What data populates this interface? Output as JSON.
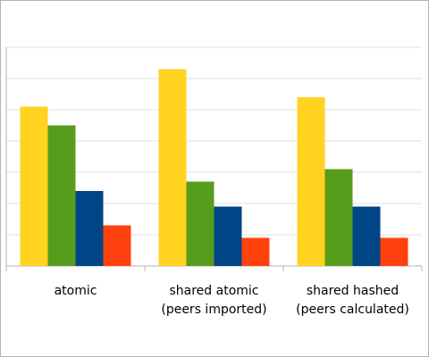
{
  "chart_data": {
    "type": "bar",
    "categories": [
      [
        "atomic"
      ],
      [
        "shared atomic",
        "(peers imported)"
      ],
      [
        "shared hashed",
        "(peers calculated)"
      ]
    ],
    "series": [
      {
        "color": "#ffd320",
        "values": [
          5.1,
          6.3,
          5.4
        ]
      },
      {
        "color": "#579d1c",
        "values": [
          4.5,
          2.7,
          3.1
        ]
      },
      {
        "color": "#004586",
        "values": [
          2.4,
          1.9,
          1.9
        ]
      },
      {
        "color": "#ff420e",
        "values": [
          1.3,
          0.9,
          0.9
        ]
      }
    ],
    "ylim": [
      0,
      7
    ],
    "yticks": [
      0,
      1,
      2,
      3,
      4,
      5,
      6,
      7
    ],
    "grid": true
  }
}
